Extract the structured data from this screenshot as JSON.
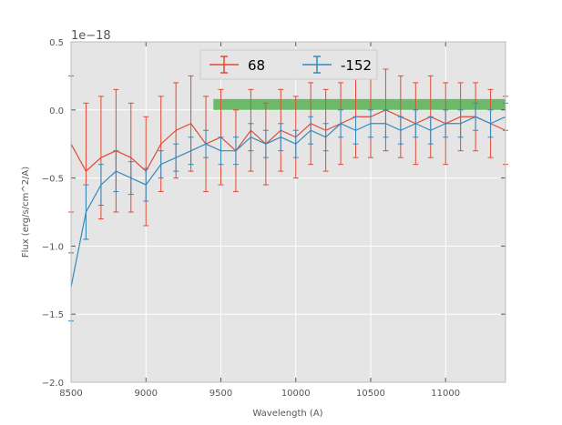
{
  "chart_data": {
    "type": "line",
    "style": "errorbar",
    "xlabel": "Wavelength (A)",
    "ylabel": "Flux (erg/s/cm^2/A)",
    "offset_text": "1e−18",
    "xlim": [
      8500,
      11400
    ],
    "ylim": [
      -2.0,
      0.5
    ],
    "xticks": [
      8500,
      9000,
      9500,
      10000,
      10500,
      11000
    ],
    "xtick_labels": [
      "8500",
      "9000",
      "9500",
      "10000",
      "10500",
      "11000"
    ],
    "yticks": [
      0.5,
      0.0,
      -0.5,
      -1.0,
      -1.5,
      -2.0
    ],
    "ytick_labels": [
      "0.5",
      "0.0",
      "−0.5",
      "−1.0",
      "−1.5",
      "−2.0"
    ],
    "grid": true,
    "legend_position": "top-center",
    "shaded_band": {
      "x_start": 9450,
      "x_end": 11400,
      "y_start": 0.0,
      "y_end": 0.08,
      "color": "#4daf4a"
    },
    "series": [
      {
        "name": "68",
        "color": "#e24a33",
        "x": [
          8500,
          8600,
          8700,
          8800,
          8900,
          9000,
          9100,
          9200,
          9300,
          9400,
          9500,
          9600,
          9700,
          9800,
          9900,
          10000,
          10100,
          10200,
          10300,
          10400,
          10500,
          10600,
          10700,
          10800,
          10900,
          11000,
          11100,
          11200,
          11300,
          11400
        ],
        "y": [
          -0.25,
          -0.45,
          -0.35,
          -0.3,
          -0.35,
          -0.45,
          -0.25,
          -0.15,
          -0.1,
          -0.25,
          -0.2,
          -0.3,
          -0.15,
          -0.25,
          -0.15,
          -0.2,
          -0.1,
          -0.15,
          -0.1,
          -0.05,
          -0.05,
          0.0,
          -0.05,
          -0.1,
          -0.05,
          -0.1,
          -0.05,
          -0.05,
          -0.1,
          -0.15
        ],
        "err": [
          0.5,
          0.5,
          0.45,
          0.45,
          0.4,
          0.4,
          0.35,
          0.35,
          0.35,
          0.35,
          0.35,
          0.3,
          0.3,
          0.3,
          0.3,
          0.3,
          0.3,
          0.3,
          0.3,
          0.3,
          0.3,
          0.3,
          0.3,
          0.3,
          0.3,
          0.3,
          0.25,
          0.25,
          0.25,
          0.25
        ]
      },
      {
        "name": "-152",
        "color": "#348abd",
        "x": [
          8500,
          8600,
          8700,
          8800,
          8900,
          9000,
          9100,
          9200,
          9300,
          9400,
          9500,
          9600,
          9700,
          9800,
          9900,
          10000,
          10100,
          10200,
          10300,
          10400,
          10500,
          10600,
          10700,
          10800,
          10900,
          11000,
          11100,
          11200,
          11300,
          11400
        ],
        "y": [
          -1.3,
          -0.75,
          -0.55,
          -0.45,
          -0.5,
          -0.55,
          -0.4,
          -0.35,
          -0.3,
          -0.25,
          -0.3,
          -0.3,
          -0.2,
          -0.25,
          -0.2,
          -0.25,
          -0.15,
          -0.2,
          -0.1,
          -0.15,
          -0.1,
          -0.1,
          -0.15,
          -0.1,
          -0.15,
          -0.1,
          -0.1,
          -0.05,
          -0.1,
          -0.05
        ],
        "err": [
          0.25,
          0.2,
          0.15,
          0.15,
          0.12,
          0.12,
          0.1,
          0.1,
          0.1,
          0.1,
          0.1,
          0.1,
          0.1,
          0.1,
          0.1,
          0.1,
          0.1,
          0.1,
          0.1,
          0.1,
          0.1,
          0.1,
          0.1,
          0.1,
          0.1,
          0.1,
          0.1,
          0.1,
          0.1,
          0.1
        ]
      }
    ]
  }
}
